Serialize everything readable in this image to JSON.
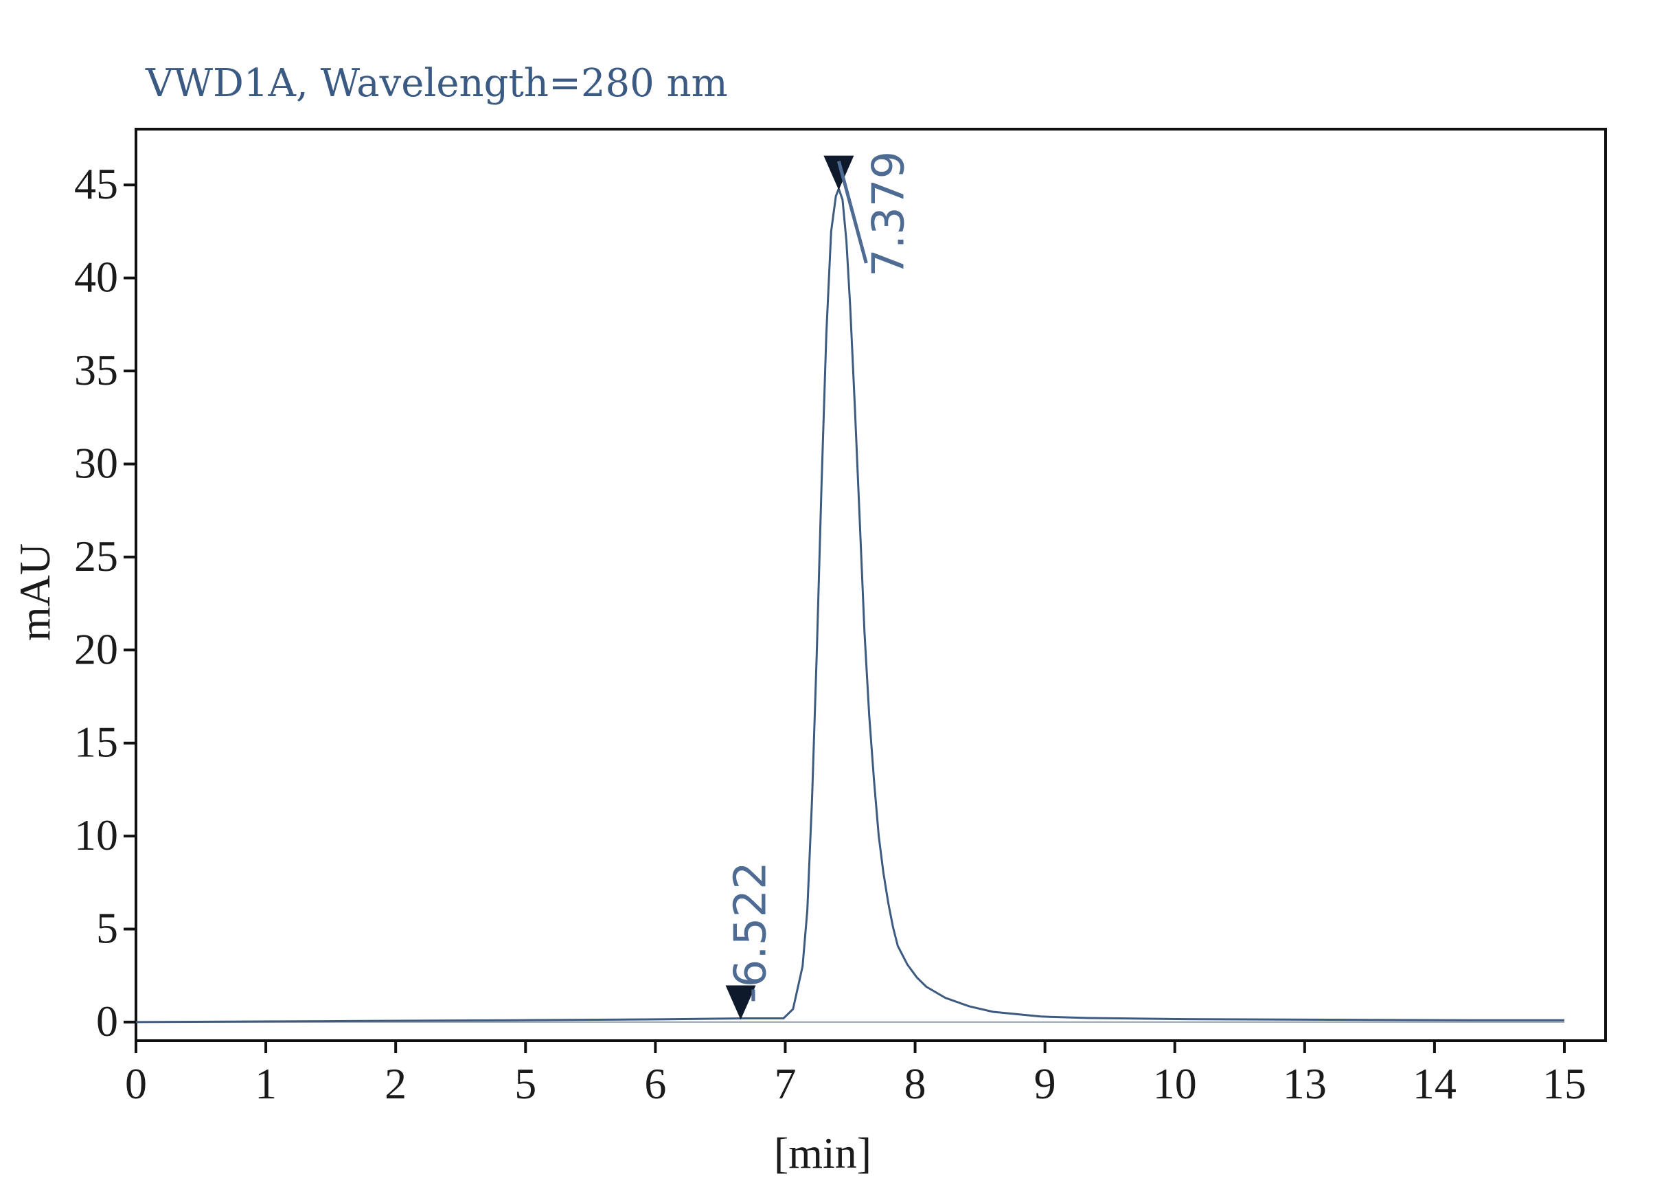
{
  "chart_data": {
    "type": "line",
    "title": "VWD1A, Wavelength=280 nm",
    "xlabel": "[min]",
    "ylabel": "mAU",
    "x_ticks": [
      "0",
      "1",
      "2",
      "5",
      "6",
      "7",
      "8",
      "9",
      "10",
      "13",
      "14",
      "15"
    ],
    "y_ticks": [
      0,
      5,
      10,
      15,
      20,
      25,
      30,
      35,
      40,
      45
    ],
    "ylim": [
      -1,
      48
    ],
    "grid": false,
    "series": [
      {
        "color": "#3d5a80",
        "x": [
          0,
          2,
          4,
          5.5,
          6.4,
          6.8,
          6.9,
          7.0,
          7.05,
          7.1,
          7.15,
          7.2,
          7.25,
          7.3,
          7.35,
          7.38,
          7.42,
          7.46,
          7.5,
          7.55,
          7.6,
          7.65,
          7.7,
          7.75,
          7.8,
          7.85,
          7.9,
          7.95,
          8.0,
          8.1,
          8.2,
          8.3,
          8.5,
          8.75,
          9.0,
          9.5,
          10.0,
          11.0,
          13.0,
          14.0,
          15.0
        ],
        "values": [
          0.0,
          0.05,
          0.1,
          0.15,
          0.2,
          0.2,
          0.7,
          3.0,
          6.0,
          12.0,
          20.0,
          29.0,
          37.0,
          42.5,
          44.4,
          44.8,
          44.2,
          42.0,
          38.5,
          33.0,
          27.0,
          21.0,
          16.5,
          13.0,
          10.0,
          8.0,
          6.4,
          5.1,
          4.1,
          3.1,
          2.4,
          1.9,
          1.3,
          0.85,
          0.55,
          0.3,
          0.22,
          0.16,
          0.12,
          0.1,
          0.1
        ]
      }
    ],
    "peaks": [
      {
        "label": "6.522",
        "x": 6.35,
        "y": 0.2
      },
      {
        "label": "7.379",
        "x": 7.38,
        "y": 44.8
      }
    ]
  }
}
